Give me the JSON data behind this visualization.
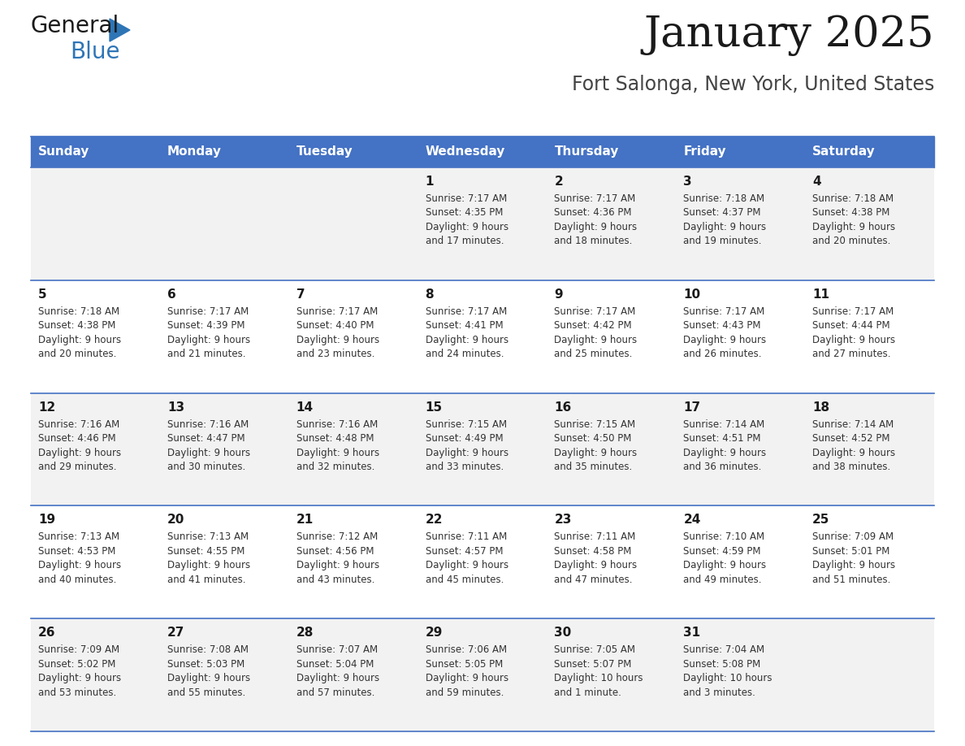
{
  "title": "January 2025",
  "subtitle": "Fort Salonga, New York, United States",
  "header_color": "#4472C4",
  "header_text_color": "#FFFFFF",
  "day_names": [
    "Sunday",
    "Monday",
    "Tuesday",
    "Wednesday",
    "Thursday",
    "Friday",
    "Saturday"
  ],
  "background_color": "#FFFFFF",
  "cell_bg_even": "#F2F2F2",
  "cell_bg_odd": "#FFFFFF",
  "separator_color": "#4472C4",
  "title_color": "#1a1a1a",
  "subtitle_color": "#444444",
  "date_color": "#1a1a1a",
  "text_color": "#333333",
  "logo_general_color": "#1a1a1a",
  "logo_blue_color": "#2E75B6",
  "weeks": [
    [
      {
        "day": null,
        "sunrise": null,
        "sunset": null,
        "daylight": null
      },
      {
        "day": null,
        "sunrise": null,
        "sunset": null,
        "daylight": null
      },
      {
        "day": null,
        "sunrise": null,
        "sunset": null,
        "daylight": null
      },
      {
        "day": 1,
        "sunrise": "7:17 AM",
        "sunset": "4:35 PM",
        "daylight": "9 hours and 17 minutes."
      },
      {
        "day": 2,
        "sunrise": "7:17 AM",
        "sunset": "4:36 PM",
        "daylight": "9 hours and 18 minutes."
      },
      {
        "day": 3,
        "sunrise": "7:18 AM",
        "sunset": "4:37 PM",
        "daylight": "9 hours and 19 minutes."
      },
      {
        "day": 4,
        "sunrise": "7:18 AM",
        "sunset": "4:38 PM",
        "daylight": "9 hours and 20 minutes."
      }
    ],
    [
      {
        "day": 5,
        "sunrise": "7:18 AM",
        "sunset": "4:38 PM",
        "daylight": "9 hours and 20 minutes."
      },
      {
        "day": 6,
        "sunrise": "7:17 AM",
        "sunset": "4:39 PM",
        "daylight": "9 hours and 21 minutes."
      },
      {
        "day": 7,
        "sunrise": "7:17 AM",
        "sunset": "4:40 PM",
        "daylight": "9 hours and 23 minutes."
      },
      {
        "day": 8,
        "sunrise": "7:17 AM",
        "sunset": "4:41 PM",
        "daylight": "9 hours and 24 minutes."
      },
      {
        "day": 9,
        "sunrise": "7:17 AM",
        "sunset": "4:42 PM",
        "daylight": "9 hours and 25 minutes."
      },
      {
        "day": 10,
        "sunrise": "7:17 AM",
        "sunset": "4:43 PM",
        "daylight": "9 hours and 26 minutes."
      },
      {
        "day": 11,
        "sunrise": "7:17 AM",
        "sunset": "4:44 PM",
        "daylight": "9 hours and 27 minutes."
      }
    ],
    [
      {
        "day": 12,
        "sunrise": "7:16 AM",
        "sunset": "4:46 PM",
        "daylight": "9 hours and 29 minutes."
      },
      {
        "day": 13,
        "sunrise": "7:16 AM",
        "sunset": "4:47 PM",
        "daylight": "9 hours and 30 minutes."
      },
      {
        "day": 14,
        "sunrise": "7:16 AM",
        "sunset": "4:48 PM",
        "daylight": "9 hours and 32 minutes."
      },
      {
        "day": 15,
        "sunrise": "7:15 AM",
        "sunset": "4:49 PM",
        "daylight": "9 hours and 33 minutes."
      },
      {
        "day": 16,
        "sunrise": "7:15 AM",
        "sunset": "4:50 PM",
        "daylight": "9 hours and 35 minutes."
      },
      {
        "day": 17,
        "sunrise": "7:14 AM",
        "sunset": "4:51 PM",
        "daylight": "9 hours and 36 minutes."
      },
      {
        "day": 18,
        "sunrise": "7:14 AM",
        "sunset": "4:52 PM",
        "daylight": "9 hours and 38 minutes."
      }
    ],
    [
      {
        "day": 19,
        "sunrise": "7:13 AM",
        "sunset": "4:53 PM",
        "daylight": "9 hours and 40 minutes."
      },
      {
        "day": 20,
        "sunrise": "7:13 AM",
        "sunset": "4:55 PM",
        "daylight": "9 hours and 41 minutes."
      },
      {
        "day": 21,
        "sunrise": "7:12 AM",
        "sunset": "4:56 PM",
        "daylight": "9 hours and 43 minutes."
      },
      {
        "day": 22,
        "sunrise": "7:11 AM",
        "sunset": "4:57 PM",
        "daylight": "9 hours and 45 minutes."
      },
      {
        "day": 23,
        "sunrise": "7:11 AM",
        "sunset": "4:58 PM",
        "daylight": "9 hours and 47 minutes."
      },
      {
        "day": 24,
        "sunrise": "7:10 AM",
        "sunset": "4:59 PM",
        "daylight": "9 hours and 49 minutes."
      },
      {
        "day": 25,
        "sunrise": "7:09 AM",
        "sunset": "5:01 PM",
        "daylight": "9 hours and 51 minutes."
      }
    ],
    [
      {
        "day": 26,
        "sunrise": "7:09 AM",
        "sunset": "5:02 PM",
        "daylight": "9 hours and 53 minutes."
      },
      {
        "day": 27,
        "sunrise": "7:08 AM",
        "sunset": "5:03 PM",
        "daylight": "9 hours and 55 minutes."
      },
      {
        "day": 28,
        "sunrise": "7:07 AM",
        "sunset": "5:04 PM",
        "daylight": "9 hours and 57 minutes."
      },
      {
        "day": 29,
        "sunrise": "7:06 AM",
        "sunset": "5:05 PM",
        "daylight": "9 hours and 59 minutes."
      },
      {
        "day": 30,
        "sunrise": "7:05 AM",
        "sunset": "5:07 PM",
        "daylight": "10 hours and 1 minute."
      },
      {
        "day": 31,
        "sunrise": "7:04 AM",
        "sunset": "5:08 PM",
        "daylight": "10 hours and 3 minutes."
      },
      {
        "day": null,
        "sunrise": null,
        "sunset": null,
        "daylight": null
      }
    ]
  ]
}
